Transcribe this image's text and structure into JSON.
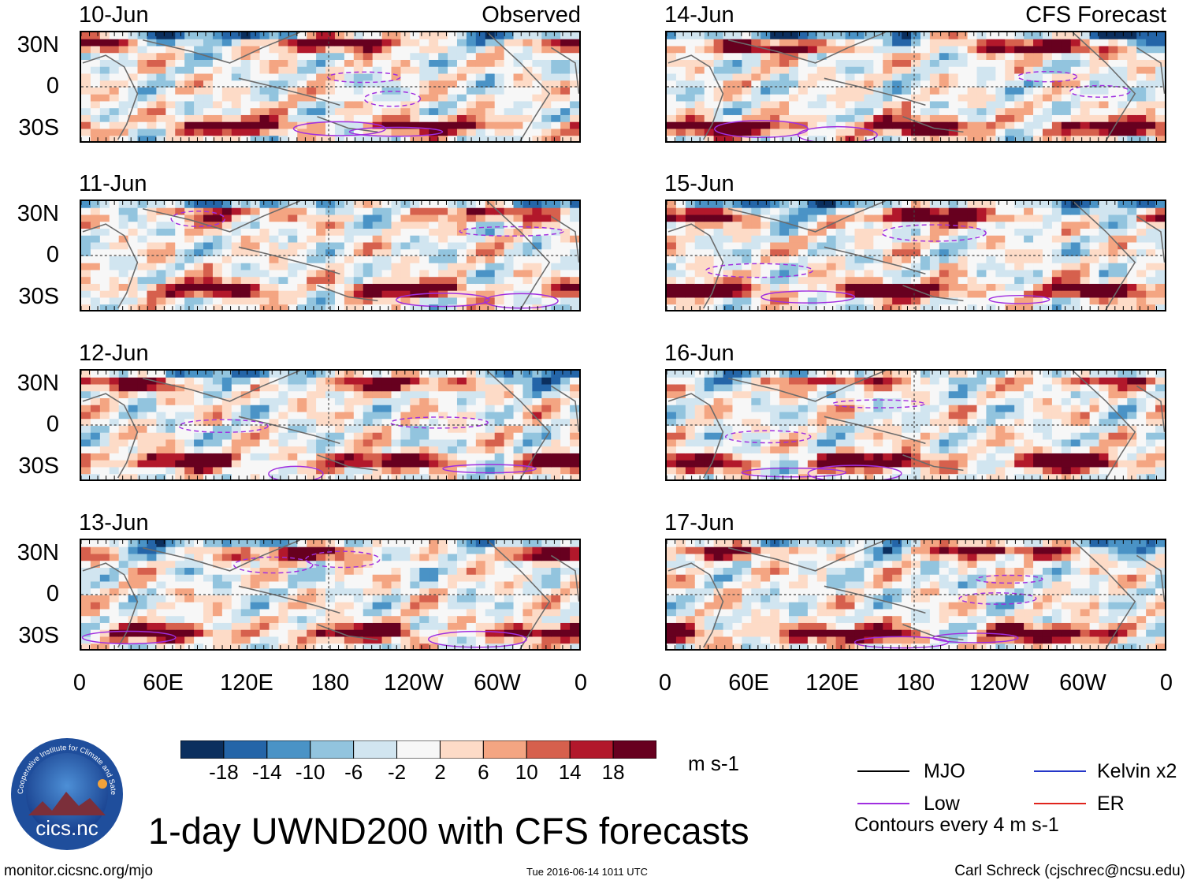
{
  "chart_data": {
    "type": "heatmap",
    "title": "1-day UWND200 with CFS forecasts",
    "variable": "UWND200",
    "units": "m s-1",
    "observed_label": "Observed",
    "forecast_label": "CFS Forecast",
    "x_axis": {
      "ticks": [
        "0",
        "60E",
        "120E",
        "180",
        "120W",
        "60W",
        "0"
      ],
      "range": [
        0,
        360
      ]
    },
    "y_axis": {
      "ticks": [
        "30N",
        "0",
        "30S"
      ],
      "range": [
        -40,
        40
      ]
    },
    "colorbar": {
      "ticks": [
        "-18",
        "-14",
        "-10",
        "-6",
        "-2",
        "2",
        "6",
        "10",
        "14",
        "18"
      ],
      "colors": [
        "#0b2f5e",
        "#2465a8",
        "#4a93c6",
        "#92c4de",
        "#d1e5f0",
        "#f7f7f7",
        "#fddbc7",
        "#f4a582",
        "#d6604d",
        "#b2182b",
        "#67001f"
      ]
    },
    "panels": [
      {
        "date": "10-Jun",
        "source": "observed"
      },
      {
        "date": "11-Jun",
        "source": "observed"
      },
      {
        "date": "12-Jun",
        "source": "observed"
      },
      {
        "date": "13-Jun",
        "source": "observed"
      },
      {
        "date": "14-Jun",
        "source": "forecast"
      },
      {
        "date": "15-Jun",
        "source": "forecast"
      },
      {
        "date": "16-Jun",
        "source": "forecast"
      },
      {
        "date": "17-Jun",
        "source": "forecast"
      }
    ],
    "legend": [
      {
        "label": "MJO",
        "color": "#000000"
      },
      {
        "label": "Kelvin x2",
        "color": "#2436c8"
      },
      {
        "label": "Low",
        "color": "#a02ee0"
      },
      {
        "label": "ER",
        "color": "#e0241c"
      }
    ],
    "contour_note": "Contours every 4 m s-1"
  },
  "logo": {
    "text": "cics.nc",
    "ring_text": "Cooperative Institute for Climate and Satellites"
  },
  "footer": {
    "url": "monitor.cicsnc.org/mjo",
    "timestamp": "Tue 2016-06-14 1011 UTC",
    "author": "Carl Schreck (cjschrec@ncsu.edu)"
  }
}
